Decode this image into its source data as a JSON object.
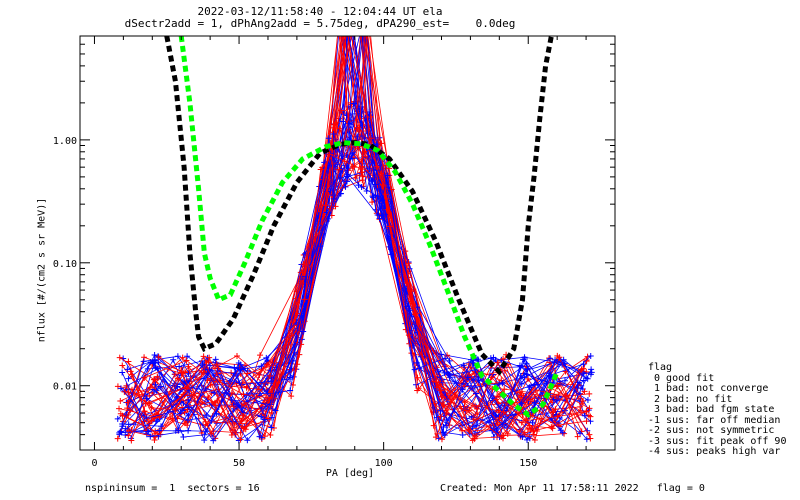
{
  "title_line1": "2022-03-12/11:58:40 - 12:04:44 UT ela",
  "title_line2": "dSectr2add = 1, dPhAng2add = 5.75deg, dPA290_est=    0.0deg",
  "footer": {
    "left": "nspininsum =  1  sectors = 16",
    "right": "Created: Mon Apr 11 17:58:11 2022   flag = 0"
  },
  "legend": {
    "title": "flag",
    "items": [
      " 0 good fit",
      " 1 bad: not converge",
      " 2 bad: no fit",
      " 3 bad: bad fgm state",
      "-1 sus: far off median",
      "-2 sus: not symmetric",
      "-3 sus: fit peak off 90",
      "-4 sus: peaks high var"
    ]
  },
  "colors": {
    "red": "#ff0000",
    "blue": "#0000ff",
    "black_fit": "#000000",
    "green_fit": "#00ff00"
  },
  "chart_data": {
    "type": "line",
    "xlabel": "PA [deg]",
    "ylabel": "nflux [#/(cm2 s sr MeV)]",
    "xlim": [
      -5,
      180
    ],
    "ylim": [
      0.003,
      7
    ],
    "yscale": "log",
    "xticks": [
      0,
      50,
      100,
      150
    ],
    "yticks": [
      0.01,
      0.1,
      1.0
    ],
    "ytick_labels": [
      "0.01",
      "0.10",
      "1.00"
    ],
    "series": [
      {
        "color": "black",
        "style": "dashed-thick",
        "x": [
          25,
          28,
          31,
          33,
          35,
          36,
          38,
          42,
          48,
          55,
          62,
          70,
          78,
          85,
          90,
          95,
          102,
          110,
          118,
          126,
          134,
          140,
          145,
          148,
          150,
          152,
          154,
          156,
          158
        ],
        "y": [
          7,
          3.0,
          0.6,
          0.12,
          0.04,
          0.025,
          0.02,
          0.022,
          0.035,
          0.08,
          0.2,
          0.45,
          0.78,
          0.92,
          0.95,
          0.92,
          0.7,
          0.38,
          0.15,
          0.05,
          0.018,
          0.013,
          0.02,
          0.05,
          0.2,
          0.5,
          1.5,
          4.0,
          7
        ]
      },
      {
        "color": "green",
        "style": "dashed-thick",
        "x": [
          30,
          33,
          36,
          38,
          40,
          43,
          47,
          52,
          58,
          65,
          72,
          80,
          86,
          92,
          98,
          104,
          110,
          116,
          122,
          128,
          134,
          140,
          145,
          150,
          155,
          158,
          160
        ],
        "y": [
          7,
          2.0,
          0.4,
          0.12,
          0.075,
          0.05,
          0.055,
          0.1,
          0.22,
          0.45,
          0.7,
          0.88,
          0.95,
          0.93,
          0.82,
          0.55,
          0.3,
          0.14,
          0.06,
          0.025,
          0.012,
          0.009,
          0.007,
          0.0058,
          0.007,
          0.01,
          0.013
        ]
      }
    ]
  }
}
